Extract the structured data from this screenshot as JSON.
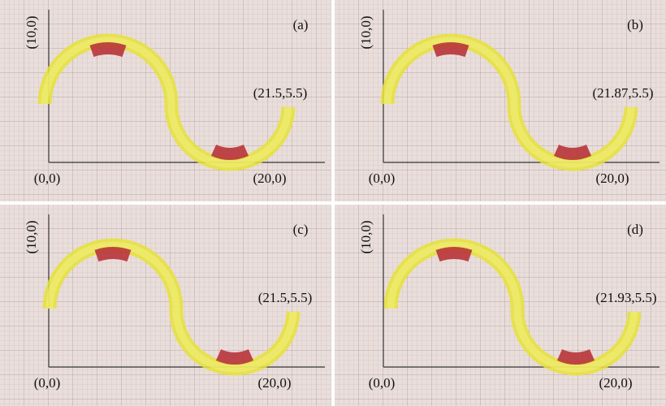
{
  "panels": [
    {
      "label": "(a)",
      "y_label": "(10,0)",
      "origin_label": "(0,0)",
      "x_label": "(20,0)",
      "end_label": "(21.5,5.5)"
    },
    {
      "label": "(b)",
      "y_label": "(10,0)",
      "origin_label": "(0,0)",
      "x_label": "(20,0)",
      "end_label": "(21.87,5.5)"
    },
    {
      "label": "(c)",
      "y_label": "(10,0)",
      "origin_label": "(0,0)",
      "x_label": "(20,0)",
      "end_label": "(21.5,5.5)"
    },
    {
      "label": "(d)",
      "y_label": "(10,0)",
      "origin_label": "(0,0)",
      "x_label": "(20,0)",
      "end_label": "(21.93,5.5)"
    }
  ]
}
